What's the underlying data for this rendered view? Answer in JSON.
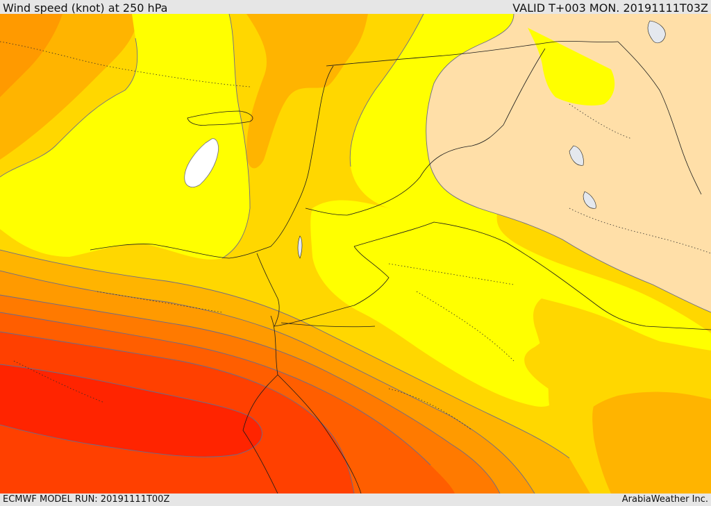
{
  "header": {
    "title": "Wind speed (knot) at 250 hPa",
    "valid": "VALID T+003 MON. 20191111T03Z"
  },
  "footer": {
    "model_run": "ECMWF MODEL RUN: 20191111T00Z",
    "credit": "ArabiaWeather Inc."
  },
  "palette": {
    "white": "#ffffff",
    "peach": "#ffdfa8",
    "yellow": "#ffff00",
    "gold": "#ffd700",
    "amber": "#ffb400",
    "orange_light": "#ff9a00",
    "orange": "#ff7a00",
    "orange_dark": "#ff5e00",
    "red_orange": "#ff4000",
    "red": "#ff2400",
    "contour": "#6b6b8a",
    "border": "#1a1a1a",
    "water": "#e4e8ee"
  }
}
